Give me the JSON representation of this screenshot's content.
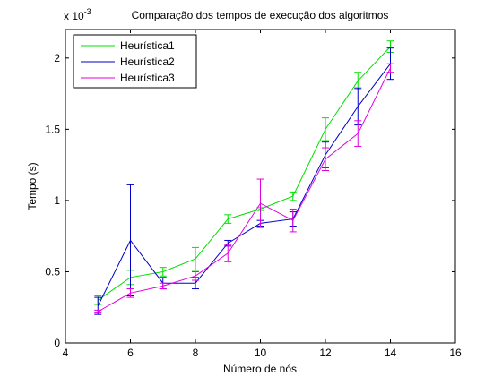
{
  "chart_data": {
    "type": "line",
    "title": "Comparação dos tempos de execução dos algoritmos",
    "xlabel": "Número de nós",
    "ylabel": "Tempo (s)",
    "y_scale_note_base": "x 10",
    "y_scale_note_exp": "-3",
    "xlim": [
      4,
      16
    ],
    "ylim": [
      0,
      2.2
    ],
    "xticks": [
      4,
      6,
      8,
      10,
      12,
      14,
      16
    ],
    "yticks": [
      0,
      0.5,
      1,
      1.5,
      2
    ],
    "ytick_labels": [
      "0",
      "0.5",
      "1",
      "1.5",
      "2"
    ],
    "grid": false,
    "legend_position": "top-left",
    "x": [
      5,
      6,
      7,
      8,
      9,
      10,
      11,
      12,
      13,
      14
    ],
    "series": [
      {
        "name": "Heurística1",
        "color": "#00e000",
        "values": [
          0.3,
          0.46,
          0.5,
          0.59,
          0.87,
          0.94,
          1.03,
          1.5,
          1.84,
          2.08
        ],
        "errors": [
          0.03,
          0.05,
          0.03,
          0.08,
          0.03,
          0.01,
          0.03,
          0.08,
          0.06,
          0.04
        ]
      },
      {
        "name": "Heurística2",
        "color": "#0000c8",
        "values": [
          0.26,
          0.72,
          0.42,
          0.42,
          0.7,
          0.84,
          0.87,
          1.32,
          1.66,
          1.96
        ],
        "errors": [
          0.06,
          0.39,
          0.04,
          0.04,
          0.02,
          0.02,
          0.05,
          0.09,
          0.13,
          0.11
        ]
      },
      {
        "name": "Heurística3",
        "color": "#e000e0",
        "values": [
          0.22,
          0.35,
          0.4,
          0.47,
          0.63,
          0.98,
          0.86,
          1.29,
          1.47,
          1.93
        ],
        "errors": [
          0.01,
          0.03,
          0.02,
          0.03,
          0.06,
          0.17,
          0.08,
          0.08,
          0.09,
          0.03
        ]
      }
    ]
  }
}
